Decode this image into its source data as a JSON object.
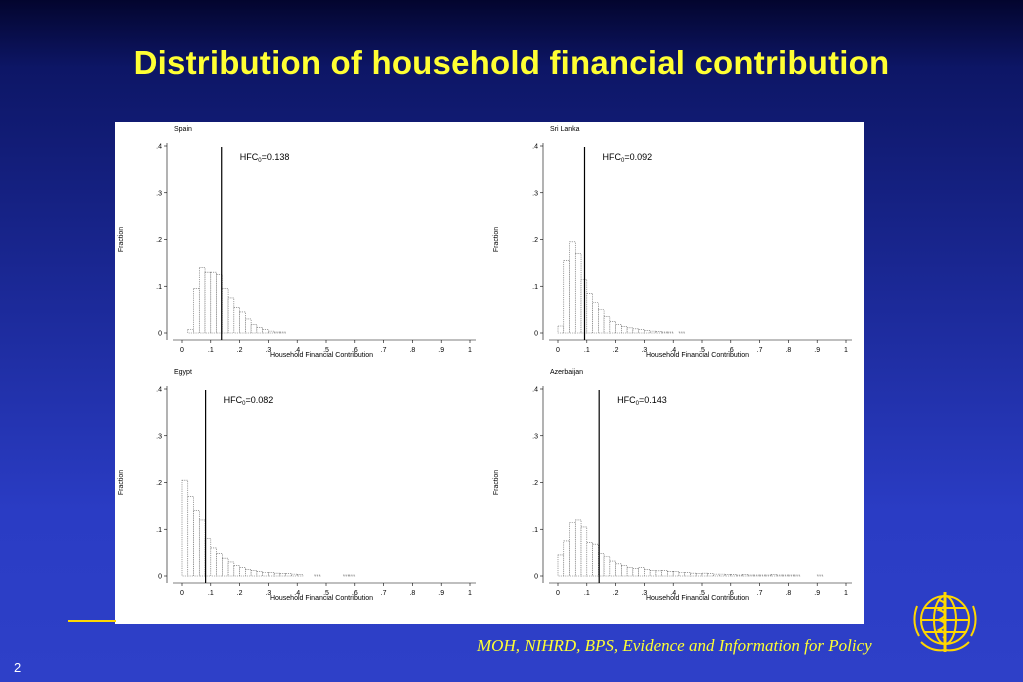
{
  "slide": {
    "title": "Distribution of household financial contribution",
    "footer": "MOH, NIHRD, BPS, Evidence and Information for Policy",
    "page_number": "2",
    "logo_icon": "who-emblem-icon",
    "colors": {
      "title": "#ffff33",
      "footer": "#ffff33",
      "background": "#2a3cc4"
    }
  },
  "chart_data": [
    {
      "type": "bar",
      "title": "Spain",
      "xlabel": "Household Financial Contribution",
      "ylabel": "Fraction",
      "xlim": [
        0,
        1
      ],
      "ylim": [
        0,
        0.4
      ],
      "xticks": [
        "0",
        ".1",
        ".2",
        ".3",
        ".4",
        ".5",
        ".6",
        ".7",
        ".8",
        ".9",
        "1"
      ],
      "yticks": [
        "0",
        ".1",
        ".2",
        ".3",
        ".4"
      ],
      "bin_width": 0.02,
      "bin_starts": [
        0.02,
        0.04,
        0.06,
        0.08,
        0.1,
        0.12,
        0.14,
        0.16,
        0.18,
        0.2,
        0.22,
        0.24,
        0.26,
        0.28,
        0.3,
        0.32,
        0.34
      ],
      "values": [
        0.008,
        0.095,
        0.14,
        0.13,
        0.13,
        0.125,
        0.095,
        0.075,
        0.055,
        0.045,
        0.03,
        0.018,
        0.012,
        0.007,
        0.004,
        0.002,
        0.002
      ],
      "reference_line": {
        "x": 0.138,
        "label_prefix": "HFC",
        "label_sub": "0",
        "label_value": "=0.138"
      }
    },
    {
      "type": "bar",
      "title": "Sri Lanka",
      "xlabel": "Household Financial Contribution",
      "ylabel": "Fraction",
      "xlim": [
        0,
        1
      ],
      "ylim": [
        0,
        0.4
      ],
      "xticks": [
        "0",
        ".1",
        ".2",
        ".3",
        ".4",
        ".5",
        ".6",
        ".7",
        ".8",
        ".9",
        "1"
      ],
      "yticks": [
        "0",
        ".1",
        ".2",
        ".3",
        ".4"
      ],
      "bin_width": 0.02,
      "bin_starts": [
        0.0,
        0.02,
        0.04,
        0.06,
        0.08,
        0.1,
        0.12,
        0.14,
        0.16,
        0.18,
        0.2,
        0.22,
        0.24,
        0.26,
        0.28,
        0.3,
        0.32,
        0.34,
        0.36,
        0.38,
        0.42
      ],
      "values": [
        0.015,
        0.155,
        0.195,
        0.17,
        0.115,
        0.085,
        0.065,
        0.05,
        0.035,
        0.025,
        0.018,
        0.014,
        0.011,
        0.009,
        0.007,
        0.005,
        0.004,
        0.003,
        0.002,
        0.002,
        0.002
      ],
      "reference_line": {
        "x": 0.092,
        "label_prefix": "HFC",
        "label_sub": "0",
        "label_value": "=0.092"
      }
    },
    {
      "type": "bar",
      "title": "Egypt",
      "xlabel": "Household Financial Contribution",
      "ylabel": "Fraction",
      "xlim": [
        0,
        1
      ],
      "ylim": [
        0,
        0.4
      ],
      "xticks": [
        "0",
        ".1",
        ".2",
        ".3",
        ".4",
        ".5",
        ".6",
        ".7",
        ".8",
        ".9",
        "1"
      ],
      "yticks": [
        "0",
        ".1",
        ".2",
        ".3",
        ".4"
      ],
      "bin_width": 0.02,
      "bin_starts": [
        0.0,
        0.02,
        0.04,
        0.06,
        0.08,
        0.1,
        0.12,
        0.14,
        0.16,
        0.18,
        0.2,
        0.22,
        0.24,
        0.26,
        0.28,
        0.3,
        0.32,
        0.34,
        0.36,
        0.38,
        0.4,
        0.46,
        0.56,
        0.58
      ],
      "values": [
        0.205,
        0.17,
        0.14,
        0.12,
        0.08,
        0.06,
        0.048,
        0.038,
        0.03,
        0.022,
        0.018,
        0.014,
        0.012,
        0.01,
        0.008,
        0.007,
        0.006,
        0.005,
        0.005,
        0.004,
        0.003,
        0.002,
        0.002,
        0.002
      ],
      "reference_line": {
        "x": 0.082,
        "label_prefix": "HFC",
        "label_sub": "0",
        "label_value": "=0.082"
      }
    },
    {
      "type": "bar",
      "title": "Azerbaijan",
      "xlabel": "Household Financial Contribution",
      "ylabel": "Fraction",
      "xlim": [
        0,
        1
      ],
      "ylim": [
        0,
        0.4
      ],
      "xticks": [
        "0",
        ".1",
        ".2",
        ".3",
        ".4",
        ".5",
        ".6",
        ".7",
        ".8",
        ".9",
        "1"
      ],
      "yticks": [
        "0",
        ".1",
        ".2",
        ".3",
        ".4"
      ],
      "bin_width": 0.02,
      "bin_starts": [
        0.0,
        0.02,
        0.04,
        0.06,
        0.08,
        0.1,
        0.12,
        0.14,
        0.16,
        0.18,
        0.2,
        0.22,
        0.24,
        0.26,
        0.28,
        0.3,
        0.32,
        0.34,
        0.36,
        0.38,
        0.4,
        0.42,
        0.44,
        0.46,
        0.48,
        0.5,
        0.52,
        0.54,
        0.56,
        0.58,
        0.6,
        0.62,
        0.64,
        0.66,
        0.68,
        0.7,
        0.72,
        0.74,
        0.76,
        0.78,
        0.8,
        0.82,
        0.9
      ],
      "values": [
        0.045,
        0.075,
        0.115,
        0.12,
        0.105,
        0.072,
        0.068,
        0.048,
        0.042,
        0.032,
        0.026,
        0.022,
        0.018,
        0.016,
        0.018,
        0.014,
        0.012,
        0.011,
        0.012,
        0.01,
        0.01,
        0.008,
        0.007,
        0.006,
        0.005,
        0.006,
        0.005,
        0.004,
        0.004,
        0.003,
        0.003,
        0.002,
        0.003,
        0.002,
        0.002,
        0.002,
        0.002,
        0.003,
        0.002,
        0.002,
        0.002,
        0.002,
        0.002
      ],
      "reference_line": {
        "x": 0.143,
        "label_prefix": "HFC",
        "label_sub": "0",
        "label_value": "=0.143"
      }
    }
  ]
}
